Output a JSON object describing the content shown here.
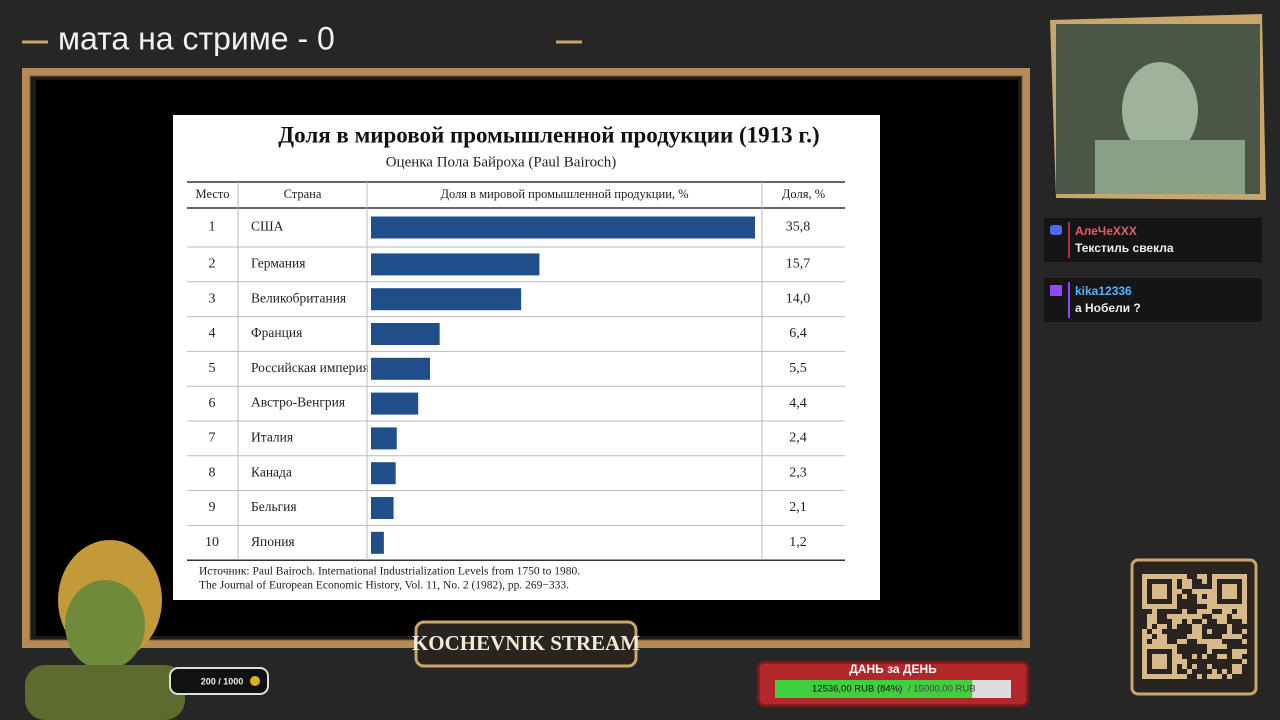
{
  "header": {
    "counter": "мата на стриме - 0"
  },
  "slide": {
    "title": "Доля в мировой промышленной продукции (1913 г.)",
    "subtitle": "Оценка Пола Байроха (Paul Bairoch)",
    "columns": [
      "Место",
      "Страна",
      "Доля в мировой промышленной продукции, %",
      "Доля, %"
    ],
    "rows": [
      {
        "rank": 1,
        "country": "США",
        "value": 35.8,
        "label": "35,8"
      },
      {
        "rank": 2,
        "country": "Германия",
        "value": 15.7,
        "label": "15,7"
      },
      {
        "rank": 3,
        "country": "Великобритания",
        "value": 14.0,
        "label": "14,0"
      },
      {
        "rank": 4,
        "country": "Франция",
        "value": 6.4,
        "label": "6,4"
      },
      {
        "rank": 5,
        "country": "Российская империя",
        "value": 5.5,
        "label": "5,5"
      },
      {
        "rank": 6,
        "country": "Австро-Венгрия",
        "value": 4.4,
        "label": "4,4"
      },
      {
        "rank": 7,
        "country": "Италия",
        "value": 2.4,
        "label": "2,4"
      },
      {
        "rank": 8,
        "country": "Канада",
        "value": 2.3,
        "label": "2,3"
      },
      {
        "rank": 9,
        "country": "Бельгия",
        "value": 2.1,
        "label": "2,1"
      },
      {
        "rank": 10,
        "country": "Япония",
        "value": 1.2,
        "label": "1,2"
      }
    ],
    "source": [
      "Источник: Paul Bairoch. International Industrialization Levels from 1750 to 1980.",
      "The Journal of European Economic History, Vol. 11, No. 2 (1982), pp. 269−333."
    ]
  },
  "chat": [
    {
      "user": "АлеЧеXXX",
      "text": "Текстиль свекла"
    },
    {
      "user": "kika12336",
      "text": "а Нобели ?"
    }
  ],
  "banner": "KOCHEVNIK STREAM",
  "points": "200 / 1000",
  "goal": {
    "title": "ДАНЬ за ДЕНЬ",
    "current": 12536,
    "goal": 15000,
    "current_label": "12536,00 RUB (84%)",
    "goal_label": "/ 15000,00 RUB"
  }
}
